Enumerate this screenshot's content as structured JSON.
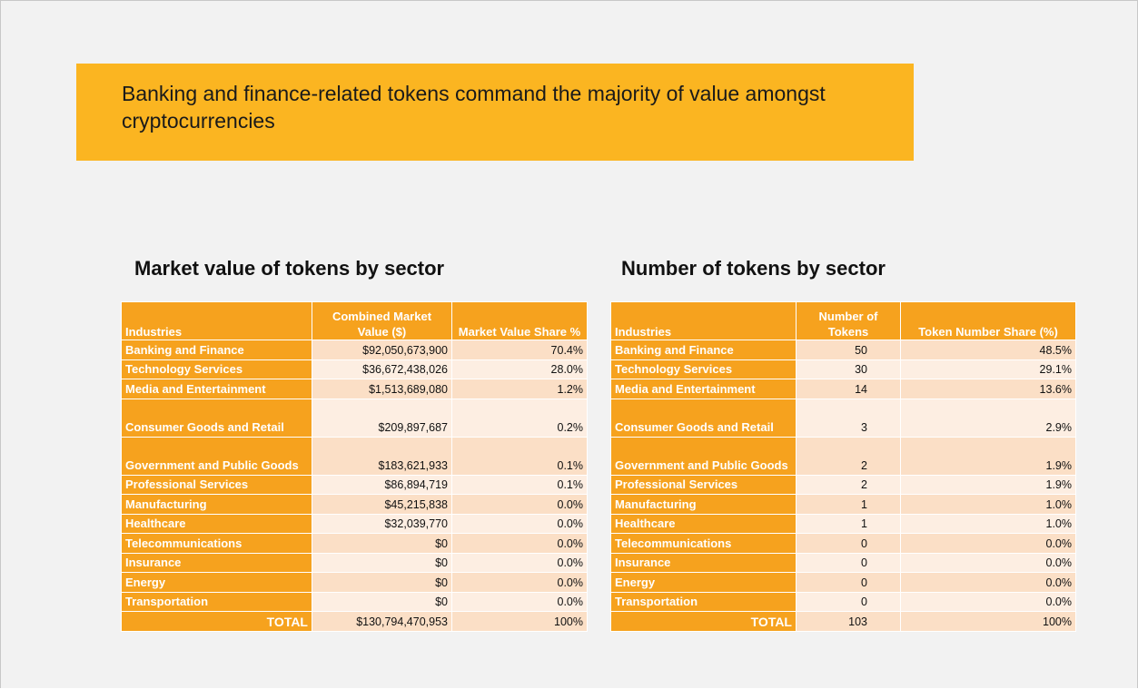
{
  "header": {
    "title": "Banking and finance-related tokens command the majority of value amongst cryptocurrencies"
  },
  "tables": [
    {
      "title": "Market value of tokens by sector",
      "columns": [
        "Industries",
        "Combined Market Value ($)",
        "Market Value Share %"
      ],
      "rows": [
        [
          "Banking and Finance",
          "$92,050,673,900",
          "70.4%"
        ],
        [
          "Technology Services",
          "$36,672,438,026",
          "28.0%"
        ],
        [
          "Media and Entertainment",
          "$1,513,689,080",
          "1.2%"
        ],
        [
          "Consumer Goods and Retail",
          "$209,897,687",
          "0.2%"
        ],
        [
          "Government and Public Goods",
          "$183,621,933",
          "0.1%"
        ],
        [
          "Professional Services",
          "$86,894,719",
          "0.1%"
        ],
        [
          "Manufacturing",
          "$45,215,838",
          "0.0%"
        ],
        [
          "Healthcare",
          "$32,039,770",
          "0.0%"
        ],
        [
          "Telecommunications",
          "$0",
          "0.0%"
        ],
        [
          "Insurance",
          "$0",
          "0.0%"
        ],
        [
          "Energy",
          "$0",
          "0.0%"
        ],
        [
          "Transportation",
          "$0",
          "0.0%"
        ],
        [
          "TOTAL",
          "$130,794,470,953",
          "100%"
        ]
      ]
    },
    {
      "title": "Number of tokens by sector",
      "columns": [
        "Industries",
        "Number of Tokens",
        "Token Number Share (%)"
      ],
      "rows": [
        [
          "Banking and Finance",
          "50",
          "48.5%"
        ],
        [
          "Technology Services",
          "30",
          "29.1%"
        ],
        [
          "Media and Entertainment",
          "14",
          "13.6%"
        ],
        [
          "Consumer Goods and Retail",
          "3",
          "2.9%"
        ],
        [
          "Government and Public Goods",
          "2",
          "1.9%"
        ],
        [
          "Professional Services",
          "2",
          "1.9%"
        ],
        [
          "Manufacturing",
          "1",
          "1.0%"
        ],
        [
          "Healthcare",
          "1",
          "1.0%"
        ],
        [
          "Telecommunications",
          "0",
          "0.0%"
        ],
        [
          "Insurance",
          "0",
          "0.0%"
        ],
        [
          "Energy",
          "0",
          "0.0%"
        ],
        [
          "Transportation",
          "0",
          "0.0%"
        ],
        [
          "TOTAL",
          "103",
          "100%"
        ]
      ]
    }
  ]
}
